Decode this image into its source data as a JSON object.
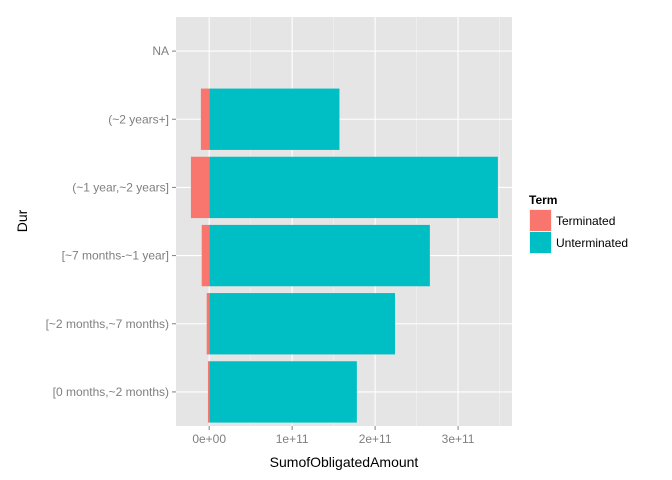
{
  "chart_data": {
    "type": "bar",
    "orientation": "horizontal",
    "stacked": true,
    "xlabel": "SumofObligatedAmount",
    "ylabel": "Dur",
    "categories": [
      "[0 months,~2 months)",
      "[~2 months,~7 months)",
      "[~7 months-~1 year]",
      "(~1 year,~2 years]",
      "(~2 years+]",
      "NA"
    ],
    "x_ticks": [
      {
        "value": 0,
        "label": "0e+00"
      },
      {
        "value": 100000000000,
        "label": "1e+11"
      },
      {
        "value": 200000000000,
        "label": "2e+11"
      },
      {
        "value": 300000000000,
        "label": "3e+11"
      }
    ],
    "xlim": [
      -40000000000,
      365000000000
    ],
    "series": [
      {
        "name": "Terminated",
        "color": "#F8766D",
        "values": [
          -1500000000,
          -3000000000,
          -9000000000,
          -22000000000,
          -10000000000,
          0
        ]
      },
      {
        "name": "Unterminated",
        "color": "#00BFC4",
        "values": [
          178000000000,
          224000000000,
          266000000000,
          348000000000,
          157000000000,
          0
        ]
      }
    ],
    "legend": {
      "title": "Term",
      "position": "right"
    },
    "panel_color": "#E5E5E5",
    "grid": true
  }
}
